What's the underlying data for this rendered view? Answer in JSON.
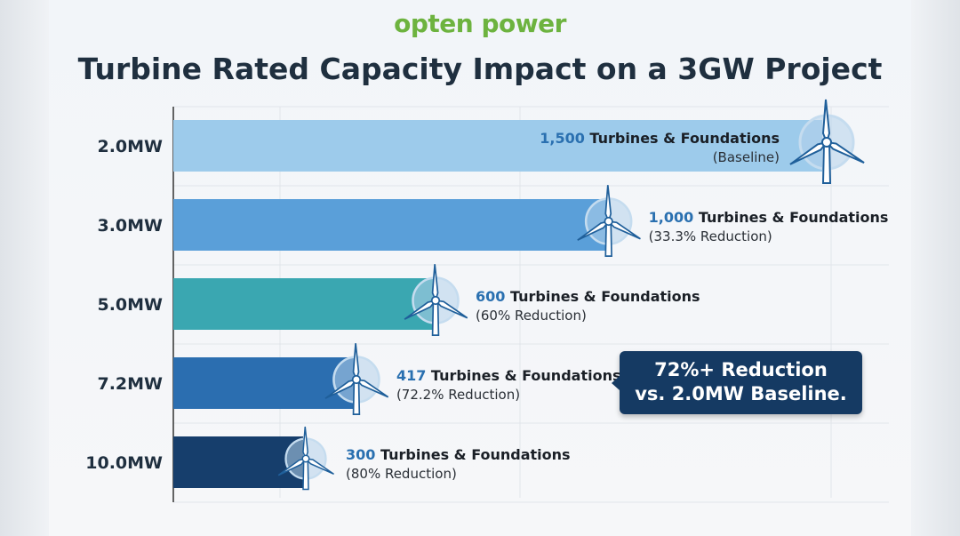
{
  "logo": "opten power",
  "chart_data": {
    "type": "bar",
    "orientation": "horizontal",
    "title": "Turbine Rated Capacity Impact on a 3GW Project",
    "categories": [
      "2.0MW",
      "3.0MW",
      "5.0MW",
      "7.2MW",
      "10.0MW"
    ],
    "values": [
      1500,
      1000,
      600,
      417,
      300
    ],
    "xlim": [
      0,
      1500
    ],
    "grid": true,
    "colors": [
      "#9dcbeb",
      "#5a9fd9",
      "#3aa7b1",
      "#2b6eb0",
      "#163e6c"
    ],
    "data_labels": [
      {
        "count": "1,500",
        "text": "Turbines & Foundations",
        "note": "(Baseline)"
      },
      {
        "count": "1,000",
        "text": "Turbines & Foundations",
        "note": "(33.3% Reduction)"
      },
      {
        "count": "600",
        "text": "Turbines & Foundations",
        "note": "(60% Reduction)"
      },
      {
        "count": "417",
        "text": "Turbines & Foundations",
        "note": "(72.2% Reduction)"
      },
      {
        "count": "300",
        "text": "Turbines & Foundations",
        "note": "(80% Reduction)"
      }
    ],
    "annotation": {
      "line1": "72%+ Reduction",
      "line2": "vs. 2.0MW Baseline."
    }
  }
}
